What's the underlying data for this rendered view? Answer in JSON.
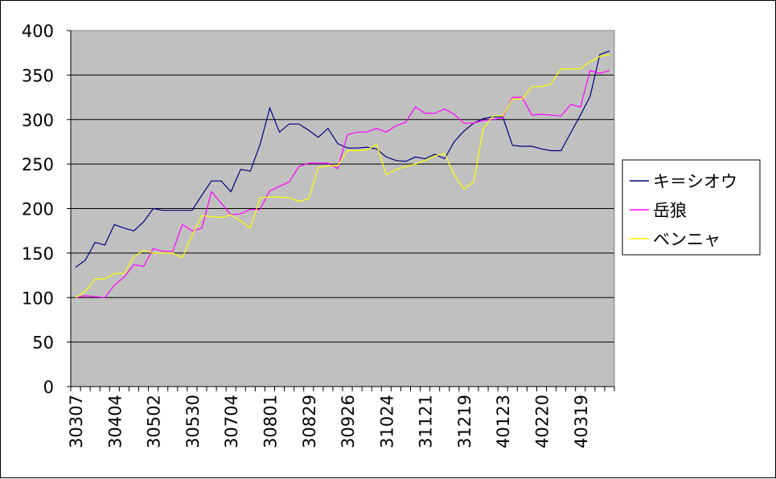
{
  "chart_data": {
    "type": "line",
    "title": "",
    "xlabel": "",
    "ylabel": "",
    "ylim": [
      0,
      400
    ],
    "yticks": [
      0,
      50,
      100,
      150,
      200,
      250,
      300,
      350,
      400
    ],
    "grid": true,
    "legend_position": "right",
    "plot_background": "#c0c0c0",
    "x_tick_labels": [
      "30307",
      "30404",
      "30502",
      "30530",
      "30704",
      "30801",
      "30829",
      "30926",
      "31024",
      "31121",
      "31219",
      "40123",
      "40220",
      "40319"
    ],
    "x_label_interval": 4,
    "series": [
      {
        "name": "キ＝シオウ",
        "color": "#000080",
        "values": [
          134,
          142,
          162,
          159,
          182,
          178,
          175,
          185,
          200,
          198,
          198,
          198,
          198,
          215,
          231,
          231,
          219,
          244,
          242,
          272,
          313,
          286,
          295,
          295,
          288,
          280,
          290,
          273,
          268,
          268,
          269,
          267,
          258,
          254,
          253,
          258,
          256,
          261,
          256,
          275,
          287,
          296,
          301,
          303,
          303,
          271,
          270,
          270,
          267,
          265,
          265,
          285,
          305,
          326,
          373,
          377
        ]
      },
      {
        "name": "岳狼",
        "color": "#ff00ff",
        "values": [
          100,
          102,
          101,
          100,
          114,
          123,
          137,
          135,
          155,
          152,
          152,
          182,
          175,
          178,
          219,
          206,
          193,
          194,
          199,
          199,
          220,
          225,
          230,
          247,
          251,
          251,
          251,
          245,
          283,
          286,
          286,
          290,
          286,
          293,
          297,
          314,
          307,
          307,
          312,
          306,
          296,
          296,
          299,
          300,
          302,
          325,
          325,
          305,
          306,
          305,
          304,
          317,
          314,
          355,
          352,
          355
        ]
      },
      {
        "name": "ベンニャ",
        "color": "#ffff00",
        "values": [
          100,
          107,
          121,
          121,
          127,
          127,
          146,
          153,
          150,
          150,
          150,
          145,
          170,
          192,
          191,
          190,
          193,
          186,
          178,
          212,
          213,
          213,
          212,
          208,
          211,
          246,
          248,
          248,
          265,
          265,
          266,
          272,
          238,
          244,
          247,
          250,
          254,
          259,
          262,
          238,
          222,
          230,
          290,
          304,
          304,
          323,
          323,
          337,
          337,
          340,
          357,
          357,
          357,
          365,
          371,
          373
        ]
      }
    ]
  }
}
